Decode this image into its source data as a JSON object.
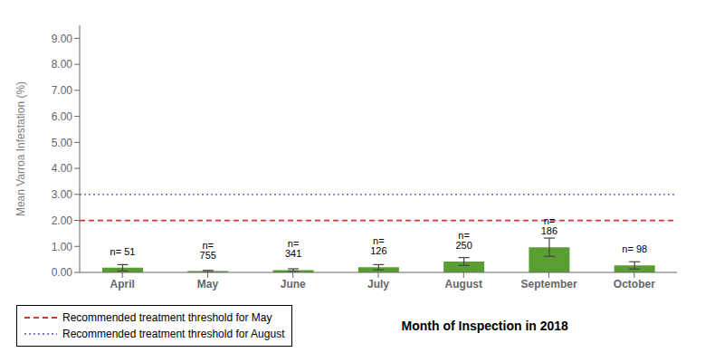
{
  "chart_data": {
    "type": "bar",
    "categories": [
      "April",
      "May",
      "June",
      "July",
      "August",
      "September",
      "October"
    ],
    "values": [
      0.18,
      0.05,
      0.09,
      0.2,
      0.42,
      0.97,
      0.27
    ],
    "errors": [
      0.12,
      0.03,
      0.05,
      0.1,
      0.15,
      0.35,
      0.14
    ],
    "annotations": [
      "n= 51",
      "n= 755",
      "n= 341",
      "n= 126",
      "n= 250",
      "n= 186",
      "n= 98"
    ],
    "color": "#5a9e32",
    "reference_lines": [
      {
        "name": "Recommended treatment threshold for May",
        "value": 2.0,
        "color": "#e03030",
        "line_style": "dashed"
      },
      {
        "name": "Recommended treatment threshold for August",
        "value": 3.0,
        "color": "#8878cc",
        "line_style": "dotted"
      }
    ],
    "ylabel": "Mean Varroa Infestation (%)",
    "xlabel": "Month of Inspection in 2018",
    "ylim": [
      0,
      9.5
    ],
    "yticks": [
      {
        "value": 0,
        "label": "0.00"
      },
      {
        "value": 1,
        "label": "1.00"
      },
      {
        "value": 2,
        "label": "2.00"
      },
      {
        "value": 3,
        "label": "3.00"
      },
      {
        "value": 4,
        "label": "4.00"
      },
      {
        "value": 5,
        "label": "5.00"
      },
      {
        "value": 6,
        "label": "6.00"
      },
      {
        "value": 7,
        "label": "7.00"
      },
      {
        "value": 8,
        "label": "8.00"
      },
      {
        "value": 9,
        "label": "9.00"
      }
    ],
    "grid": false,
    "legend": "lower left"
  }
}
